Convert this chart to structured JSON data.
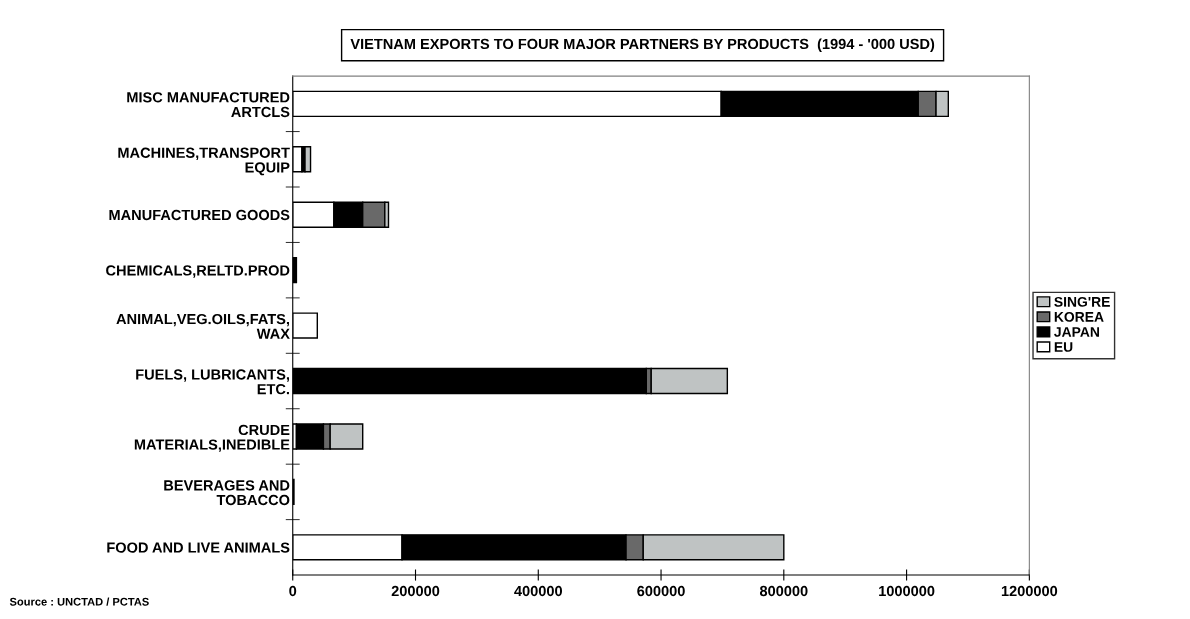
{
  "chart_data": {
    "type": "bar",
    "orientation": "horizontal",
    "stacked": true,
    "title": "VIETNAM EXPORTS TO FOUR MAJOR PARTNERS BY PRODUCTS  (1994 - '000 USD)",
    "categories": [
      "MISC MANUFACTURED\nARTCLS",
      "MACHINES,TRANSPORT\nEQUIP",
      "MANUFACTURED GOODS",
      "CHEMICALS,RELTD.PROD",
      "ANIMAL,VEG.OILS,FATS,\nWAX",
      "FUELS, LUBRICANTS,\nETC.",
      "CRUDE\nMATERIALS,INEDIBLE",
      "BEVERAGES AND\nTOBACCO",
      "FOOD AND LIVE ANIMALS"
    ],
    "series": [
      {
        "name": "EU",
        "color": "#ffffff",
        "values": [
          698000,
          15000,
          67000,
          0,
          40000,
          0,
          6000,
          0,
          178000
        ]
      },
      {
        "name": "JAPAN",
        "color": "#000000",
        "values": [
          321000,
          5000,
          47000,
          6000,
          0,
          576000,
          44000,
          2000,
          365000
        ]
      },
      {
        "name": "KOREA",
        "color": "#696969",
        "values": [
          29000,
          0,
          36000,
          0,
          0,
          8000,
          11000,
          0,
          28000
        ]
      },
      {
        "name": "SING'RE",
        "color": "#bfc3c3",
        "values": [
          20000,
          9000,
          6000,
          0,
          0,
          124000,
          53000,
          0,
          229000
        ]
      }
    ],
    "xlim": [
      0,
      1200000
    ],
    "xticks": [
      0,
      200000,
      400000,
      600000,
      800000,
      1000000,
      1200000
    ],
    "grid": false,
    "legend": "right",
    "annotations": [
      "Source : UNCTAD / PCTAS"
    ]
  }
}
